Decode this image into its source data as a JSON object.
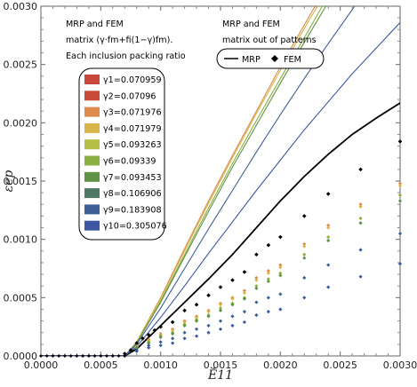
{
  "chart_data": {
    "type": "line",
    "xlabel": "Ē11",
    "ylabel": "εep",
    "xlim": [
      0,
      0.003
    ],
    "ylim": [
      0,
      0.003
    ],
    "x_ticks": [
      "0.0000",
      "0.0005",
      "0.0010",
      "0.0015",
      "0.0020",
      "0.0025",
      "0.0030"
    ],
    "y_ticks": [
      "0.0000",
      "0.0005",
      "0.0010",
      "0.0015",
      "0.0020",
      "0.0025",
      "0.0030"
    ],
    "annotation_left": [
      "MRP and FEM",
      "matrix (γ·fm+fi(1−γ)fm).",
      "Each inclusion packing ratio"
    ],
    "annotation_right": [
      "MRP and FEM",
      "matrix out of patterns"
    ],
    "legend_gamma": [
      {
        "label": "γ1=0.070959",
        "color": "#c9463d"
      },
      {
        "label": "γ2=0.07096",
        "color": "#c74a3a"
      },
      {
        "label": "γ3=0.071976",
        "color": "#dd8a4c"
      },
      {
        "label": "γ4=0.071979",
        "color": "#d9b448"
      },
      {
        "label": "γ5=0.093263",
        "color": "#b6bd43"
      },
      {
        "label": "γ6=0.09339",
        "color": "#8db043"
      },
      {
        "label": "γ7=0.093453",
        "color": "#5f9446"
      },
      {
        "label": "γ8=0.106906",
        "color": "#4f7866"
      },
      {
        "label": "γ9=0.183908",
        "color": "#3e5f96"
      },
      {
        "label": "γ10=0.305076",
        "color": "#3b58a0"
      }
    ],
    "legend_black": [
      {
        "label": "MRP",
        "style": "line",
        "color": "#000000"
      },
      {
        "label": "FEM",
        "style": "diamond",
        "color": "#000000"
      }
    ],
    "series": [
      {
        "name": "MRP",
        "kind": "line",
        "color": "#000000",
        "points": [
          [
            0,
            0
          ],
          [
            0.0007,
            0.0
          ],
          [
            0.0008,
            6e-05
          ],
          [
            0.001,
            0.00026
          ],
          [
            0.0012,
            0.00046
          ],
          [
            0.0014,
            0.00066
          ],
          [
            0.0016,
            0.00087
          ],
          [
            0.0018,
            0.0011
          ],
          [
            0.002,
            0.00133
          ],
          [
            0.0022,
            0.00154
          ],
          [
            0.0024,
            0.00173
          ],
          [
            0.0026,
            0.0019
          ],
          [
            0.0028,
            0.00204
          ],
          [
            0.003,
            0.00217
          ]
        ]
      },
      {
        "name": "γ3=0.071976",
        "kind": "line",
        "color": "#dd8a4c",
        "points": [
          [
            0,
            0
          ],
          [
            0.0007,
            0.0
          ],
          [
            0.0008,
            0.00012
          ],
          [
            0.001,
            0.0005
          ],
          [
            0.0012,
            0.00092
          ],
          [
            0.0014,
            0.00133
          ],
          [
            0.0016,
            0.00172
          ],
          [
            0.0018,
            0.0021
          ],
          [
            0.002,
            0.00248
          ],
          [
            0.0022,
            0.00284
          ],
          [
            0.00229,
            0.003
          ]
        ]
      },
      {
        "name": "γ4=0.071979",
        "kind": "line",
        "color": "#d9b448",
        "points": [
          [
            0,
            0
          ],
          [
            0.0007,
            0.0
          ],
          [
            0.0008,
            0.00012
          ],
          [
            0.001,
            0.00049
          ],
          [
            0.0012,
            0.0009
          ],
          [
            0.0014,
            0.00131
          ],
          [
            0.0016,
            0.0017
          ],
          [
            0.0018,
            0.00208
          ],
          [
            0.002,
            0.00245
          ],
          [
            0.0022,
            0.00281
          ],
          [
            0.00231,
            0.003
          ]
        ]
      },
      {
        "name": "γ6=0.09339",
        "kind": "line",
        "color": "#8db043",
        "points": [
          [
            0,
            0
          ],
          [
            0.0007,
            0.0
          ],
          [
            0.0008,
            0.00011
          ],
          [
            0.001,
            0.00047
          ],
          [
            0.0012,
            0.00087
          ],
          [
            0.0014,
            0.00127
          ],
          [
            0.0016,
            0.00165
          ],
          [
            0.0018,
            0.00202
          ],
          [
            0.002,
            0.00238
          ],
          [
            0.0022,
            0.00273
          ],
          [
            0.00235,
            0.003
          ]
        ]
      },
      {
        "name": "γ7=0.093453",
        "kind": "line",
        "color": "#5f9446",
        "points": [
          [
            0,
            0
          ],
          [
            0.0007,
            0.0
          ],
          [
            0.0008,
            0.00011
          ],
          [
            0.001,
            0.00046
          ],
          [
            0.0012,
            0.00085
          ],
          [
            0.0014,
            0.00124
          ],
          [
            0.0016,
            0.00162
          ],
          [
            0.0018,
            0.00198
          ],
          [
            0.002,
            0.00234
          ],
          [
            0.0022,
            0.00269
          ],
          [
            0.00238,
            0.003
          ]
        ]
      },
      {
        "name": "γ9=0.183908",
        "kind": "line",
        "color": "#3e5f96",
        "points": [
          [
            0,
            0
          ],
          [
            0.0007,
            0.0
          ],
          [
            0.0008,
            0.0001
          ],
          [
            0.001,
            0.00041
          ],
          [
            0.0012,
            0.00075
          ],
          [
            0.0014,
            0.00109
          ],
          [
            0.0016,
            0.00142
          ],
          [
            0.0018,
            0.00175
          ],
          [
            0.002,
            0.00207
          ],
          [
            0.0022,
            0.00238
          ],
          [
            0.0024,
            0.00268
          ],
          [
            0.0026,
            0.00297
          ],
          [
            0.00262,
            0.003
          ]
        ]
      },
      {
        "name": "γ10=0.305076",
        "kind": "line",
        "color": "#3b58a0",
        "points": [
          [
            0,
            0
          ],
          [
            0.0007,
            0.0
          ],
          [
            0.0008,
            8e-05
          ],
          [
            0.001,
            0.00033
          ],
          [
            0.0012,
            0.0006
          ],
          [
            0.0014,
            0.00088
          ],
          [
            0.0016,
            0.00115
          ],
          [
            0.0018,
            0.00142
          ],
          [
            0.002,
            0.00168
          ],
          [
            0.0022,
            0.00194
          ],
          [
            0.0024,
            0.00218
          ],
          [
            0.0026,
            0.00242
          ],
          [
            0.0028,
            0.00264
          ],
          [
            0.003,
            0.00286
          ]
        ]
      },
      {
        "name": "FEM",
        "kind": "points",
        "color": "#000000",
        "points": [
          [
            0.0007,
            2e-05
          ],
          [
            0.00075,
            5e-05
          ],
          [
            0.0008,
            0.00011
          ],
          [
            0.00085,
            0.00015
          ],
          [
            0.0009,
            0.00018
          ],
          [
            0.00095,
            0.00022
          ],
          [
            0.001,
            0.00025
          ],
          [
            0.0011,
            0.00029
          ],
          [
            0.0012,
            0.00039
          ],
          [
            0.0013,
            0.00044
          ],
          [
            0.0014,
            0.00052
          ],
          [
            0.0015,
            0.00059
          ],
          [
            0.0016,
            0.00065
          ],
          [
            0.0017,
            0.00072
          ],
          [
            0.0018,
            0.00087
          ],
          [
            0.0019,
            0.00095
          ],
          [
            0.002,
            0.00102
          ],
          [
            0.0022,
            0.0012
          ],
          [
            0.0024,
            0.00139
          ],
          [
            0.00267,
            0.0016
          ],
          [
            0.003,
            0.00184
          ]
        ]
      },
      {
        "name": "γ3=0.071976",
        "kind": "points",
        "color": "#dd8a4c",
        "points": [
          [
            0.0008,
            8e-05
          ],
          [
            0.0009,
            0.00014
          ],
          [
            0.001,
            0.00019
          ],
          [
            0.0011,
            0.00023
          ],
          [
            0.0012,
            0.0003
          ],
          [
            0.0013,
            0.00034
          ],
          [
            0.0014,
            0.00039
          ],
          [
            0.0015,
            0.00045
          ],
          [
            0.0016,
            0.0005
          ],
          [
            0.0017,
            0.00056
          ],
          [
            0.0018,
            0.00067
          ],
          [
            0.0019,
            0.00073
          ],
          [
            0.002,
            0.00078
          ],
          [
            0.0022,
            0.00096
          ],
          [
            0.0024,
            0.00112
          ],
          [
            0.00267,
            0.0013
          ],
          [
            0.003,
            0.00148
          ]
        ]
      },
      {
        "name": "γ4=0.071979",
        "kind": "points",
        "color": "#d9b448",
        "points": [
          [
            0.0008,
            8e-05
          ],
          [
            0.0009,
            0.00013
          ],
          [
            0.001,
            0.00018
          ],
          [
            0.0011,
            0.00022
          ],
          [
            0.0012,
            0.00029
          ],
          [
            0.0013,
            0.00033
          ],
          [
            0.0014,
            0.00038
          ],
          [
            0.0015,
            0.00044
          ],
          [
            0.0016,
            0.00049
          ],
          [
            0.0017,
            0.00054
          ],
          [
            0.0018,
            0.00065
          ],
          [
            0.0019,
            0.00071
          ],
          [
            0.002,
            0.00076
          ],
          [
            0.0022,
            0.00094
          ],
          [
            0.0024,
            0.0011
          ],
          [
            0.00267,
            0.00128
          ],
          [
            0.003,
            0.00146
          ]
        ]
      },
      {
        "name": "γ6=0.09339",
        "kind": "points",
        "color": "#8db043",
        "points": [
          [
            0.0008,
            7e-05
          ],
          [
            0.0009,
            0.00012
          ],
          [
            0.001,
            0.00017
          ],
          [
            0.0011,
            0.0002
          ],
          [
            0.0012,
            0.00027
          ],
          [
            0.0013,
            0.00031
          ],
          [
            0.0014,
            0.00035
          ],
          [
            0.0015,
            0.00041
          ],
          [
            0.0016,
            0.00045
          ],
          [
            0.0017,
            0.0005
          ],
          [
            0.0018,
            0.0006
          ],
          [
            0.0019,
            0.00066
          ],
          [
            0.002,
            0.00071
          ],
          [
            0.0022,
            0.00087
          ],
          [
            0.0024,
            0.00102
          ],
          [
            0.00267,
            0.00118
          ],
          [
            0.003,
            0.00138
          ]
        ]
      },
      {
        "name": "γ7=0.093453",
        "kind": "points",
        "color": "#5f9446",
        "points": [
          [
            0.0008,
            7e-05
          ],
          [
            0.0009,
            0.00011
          ],
          [
            0.001,
            0.00016
          ],
          [
            0.0011,
            0.00019
          ],
          [
            0.0012,
            0.00026
          ],
          [
            0.0013,
            0.0003
          ],
          [
            0.0014,
            0.00034
          ],
          [
            0.0015,
            0.00039
          ],
          [
            0.0016,
            0.00044
          ],
          [
            0.0017,
            0.00049
          ],
          [
            0.0018,
            0.00058
          ],
          [
            0.0019,
            0.00064
          ],
          [
            0.002,
            0.00069
          ],
          [
            0.0022,
            0.00084
          ],
          [
            0.0024,
            0.00099
          ],
          [
            0.00267,
            0.00114
          ],
          [
            0.003,
            0.00133
          ]
        ]
      },
      {
        "name": "γ9=0.183908",
        "kind": "points",
        "color": "#3e5f96",
        "points": [
          [
            0.0008,
            5e-05
          ],
          [
            0.0009,
            9e-05
          ],
          [
            0.001,
            0.00012
          ],
          [
            0.0011,
            0.00015
          ],
          [
            0.0012,
            0.0002
          ],
          [
            0.0013,
            0.00023
          ],
          [
            0.0014,
            0.00026
          ],
          [
            0.0015,
            0.0003
          ],
          [
            0.0016,
            0.00034
          ],
          [
            0.0017,
            0.00038
          ],
          [
            0.0018,
            0.00046
          ],
          [
            0.0019,
            0.0005
          ],
          [
            0.002,
            0.00053
          ],
          [
            0.0022,
            0.00067
          ],
          [
            0.0024,
            0.00078
          ],
          [
            0.00267,
            0.00091
          ],
          [
            0.003,
            0.00105
          ]
        ]
      },
      {
        "name": "γ10=0.305076",
        "kind": "points",
        "color": "#3b58a0",
        "points": [
          [
            0.0008,
            4e-05
          ],
          [
            0.0009,
            7e-05
          ],
          [
            0.001,
            9e-05
          ],
          [
            0.0011,
            0.00011
          ],
          [
            0.0012,
            0.00015
          ],
          [
            0.0013,
            0.00017
          ],
          [
            0.0014,
            0.0002
          ],
          [
            0.0015,
            0.00023
          ],
          [
            0.0016,
            0.00026
          ],
          [
            0.0017,
            0.00029
          ],
          [
            0.0018,
            0.00035
          ],
          [
            0.0019,
            0.00038
          ],
          [
            0.002,
            0.0004
          ],
          [
            0.0022,
            0.0005
          ],
          [
            0.0024,
            0.00059
          ],
          [
            0.00267,
            0.00068
          ],
          [
            0.003,
            0.00079
          ]
        ]
      }
    ]
  }
}
